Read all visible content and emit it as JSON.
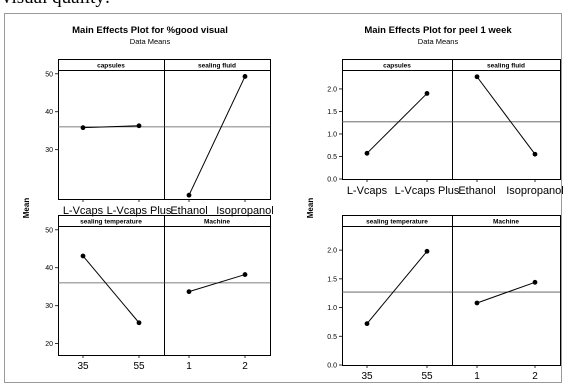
{
  "header_text": "visual quality:",
  "chart_data": [
    {
      "type": "line",
      "title": "Main Effects Plot for %good visual",
      "subtitle": "Data Means",
      "ylabel": "Mean",
      "reference_line": 36,
      "panels": [
        {
          "name": "capsules",
          "categories": [
            "L-Vcaps",
            "L-Vcaps Plus"
          ],
          "values": [
            35.8,
            36.3
          ],
          "ylim": [
            17,
            51
          ],
          "yticks": [
            "30",
            "40",
            "50"
          ],
          "ytick_values": [
            30,
            40,
            50
          ]
        },
        {
          "name": "sealing fluid",
          "categories": [
            "Ethanol",
            "Isopropanol"
          ],
          "values": [
            18,
            49.3
          ],
          "ylim": [
            17,
            51
          ],
          "yticks": [],
          "ytick_values": []
        },
        {
          "name": "sealing temperature",
          "categories": [
            "35",
            "55"
          ],
          "values": [
            43.1,
            25.5
          ],
          "ylim": [
            17,
            51
          ],
          "yticks": [
            "20",
            "30",
            "40",
            "50"
          ],
          "ytick_values": [
            20,
            30,
            40,
            50
          ]
        },
        {
          "name": "Machine",
          "categories": [
            "1",
            "2"
          ],
          "values": [
            33.7,
            38.2
          ],
          "ylim": [
            17,
            51
          ],
          "yticks": [],
          "ytick_values": []
        }
      ]
    },
    {
      "type": "line",
      "title": "Main Effects Plot for peel 1 week",
      "subtitle": "Data Means",
      "ylabel": "Mean",
      "reference_line": 1.27,
      "panels": [
        {
          "name": "capsules",
          "categories": [
            "L-Vcaps",
            "L-Vcaps Plus"
          ],
          "values": [
            0.57,
            1.9
          ],
          "ylim": [
            0,
            2.42
          ],
          "yticks": [
            "0.0",
            "0.5",
            "1.0",
            "1.5",
            "2.0"
          ],
          "ytick_values": [
            0,
            0.5,
            1.0,
            1.5,
            2.0
          ]
        },
        {
          "name": "sealing fluid",
          "categories": [
            "Ethanol",
            "Isopropanol"
          ],
          "values": [
            2.27,
            0.55
          ],
          "ylim": [
            0,
            2.42
          ],
          "yticks": [],
          "ytick_values": []
        },
        {
          "name": "sealing temperature",
          "categories": [
            "35",
            "55"
          ],
          "values": [
            0.72,
            1.98
          ],
          "ylim": [
            0,
            2.42
          ],
          "yticks": [
            "0.0",
            "0.5",
            "1.0",
            "1.5",
            "2.0"
          ],
          "ytick_values": [
            0,
            0.5,
            1.0,
            1.5,
            2.0
          ]
        },
        {
          "name": "Machine",
          "categories": [
            "1",
            "2"
          ],
          "values": [
            1.08,
            1.44
          ],
          "ylim": [
            0,
            2.42
          ],
          "yticks": [],
          "ytick_values": []
        }
      ]
    }
  ]
}
